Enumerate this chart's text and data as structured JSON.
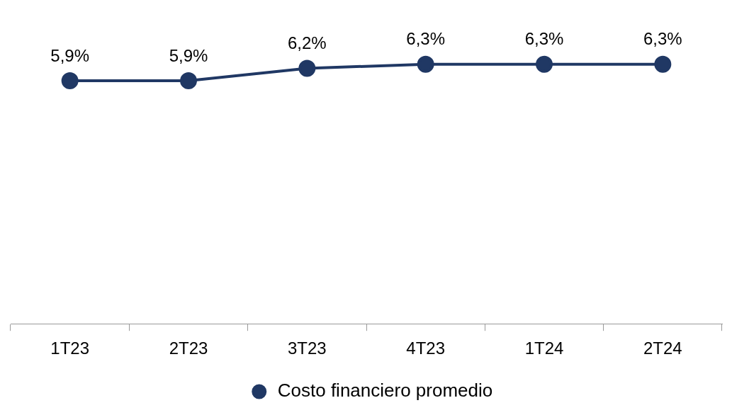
{
  "chart_data": {
    "type": "line",
    "categories": [
      "1T23",
      "2T23",
      "3T23",
      "4T23",
      "1T24",
      "2T24"
    ],
    "series": [
      {
        "name": "Costo financiero promedio",
        "color": "#203864",
        "values": [
          5.9,
          5.9,
          6.2,
          6.3,
          6.3,
          6.3
        ],
        "value_labels": [
          "5,9%",
          "5,9%",
          "6,2%",
          "6,3%",
          "6,3%",
          "6,3%"
        ]
      }
    ],
    "marker": "circle",
    "legend": "bottom",
    "grid": false,
    "tick_labels": "x"
  }
}
